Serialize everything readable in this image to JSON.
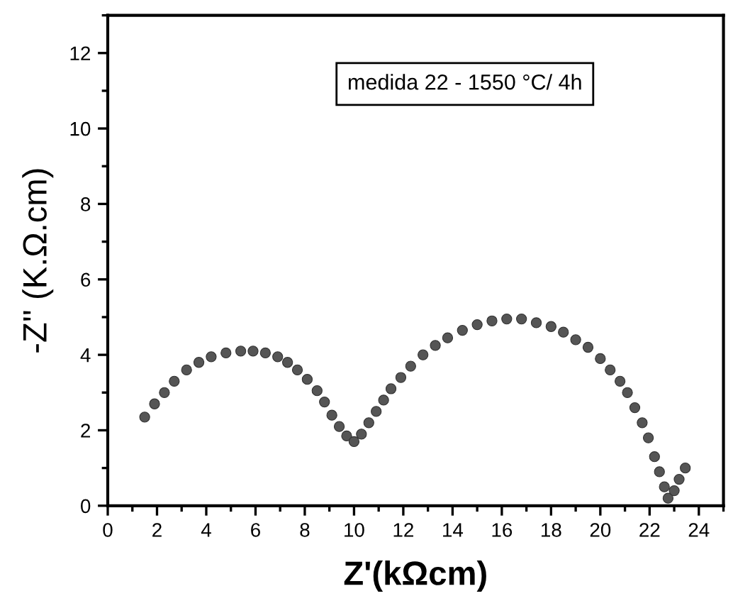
{
  "chart_data": {
    "type": "scatter",
    "xlabel": "Z'(kΩcm)",
    "ylabel": "-Z'' (K.Ω.cm)",
    "annotations": [
      "medida 22 - 1550 °C/ 4h"
    ],
    "x": [
      1.5,
      1.9,
      2.3,
      2.7,
      3.2,
      3.7,
      4.2,
      4.8,
      5.4,
      5.9,
      6.4,
      6.9,
      7.3,
      7.7,
      8.1,
      8.5,
      8.8,
      9.1,
      9.4,
      9.7,
      10.0,
      10.3,
      10.6,
      10.9,
      11.2,
      11.5,
      11.9,
      12.3,
      12.8,
      13.3,
      13.8,
      14.4,
      15.0,
      15.6,
      16.2,
      16.8,
      17.4,
      18.0,
      18.5,
      19.0,
      19.5,
      20.0,
      20.4,
      20.8,
      21.1,
      21.4,
      21.7,
      21.95,
      22.2,
      22.4,
      22.6,
      22.75,
      23.0,
      23.2,
      23.45
    ],
    "series": [
      {
        "color": "#555555",
        "values": [
          2.35,
          2.7,
          3.0,
          3.3,
          3.6,
          3.8,
          3.95,
          4.05,
          4.1,
          4.1,
          4.05,
          3.95,
          3.8,
          3.6,
          3.35,
          3.05,
          2.75,
          2.4,
          2.1,
          1.85,
          1.7,
          1.9,
          2.2,
          2.5,
          2.8,
          3.1,
          3.4,
          3.7,
          4.0,
          4.25,
          4.45,
          4.65,
          4.8,
          4.9,
          4.95,
          4.95,
          4.85,
          4.75,
          4.6,
          4.4,
          4.2,
          3.9,
          3.6,
          3.3,
          3.0,
          2.6,
          2.2,
          1.8,
          1.3,
          0.9,
          0.5,
          0.2,
          0.4,
          0.7,
          1.0
        ]
      }
    ],
    "xlim": [
      0,
      25
    ],
    "ylim": [
      0,
      13
    ],
    "xticks": [
      0,
      2,
      4,
      6,
      8,
      10,
      12,
      14,
      16,
      18,
      20,
      22,
      24
    ],
    "yticks": [
      0,
      2,
      4,
      6,
      8,
      10,
      12
    ],
    "marker": "circle",
    "grid": false,
    "legend": false
  }
}
